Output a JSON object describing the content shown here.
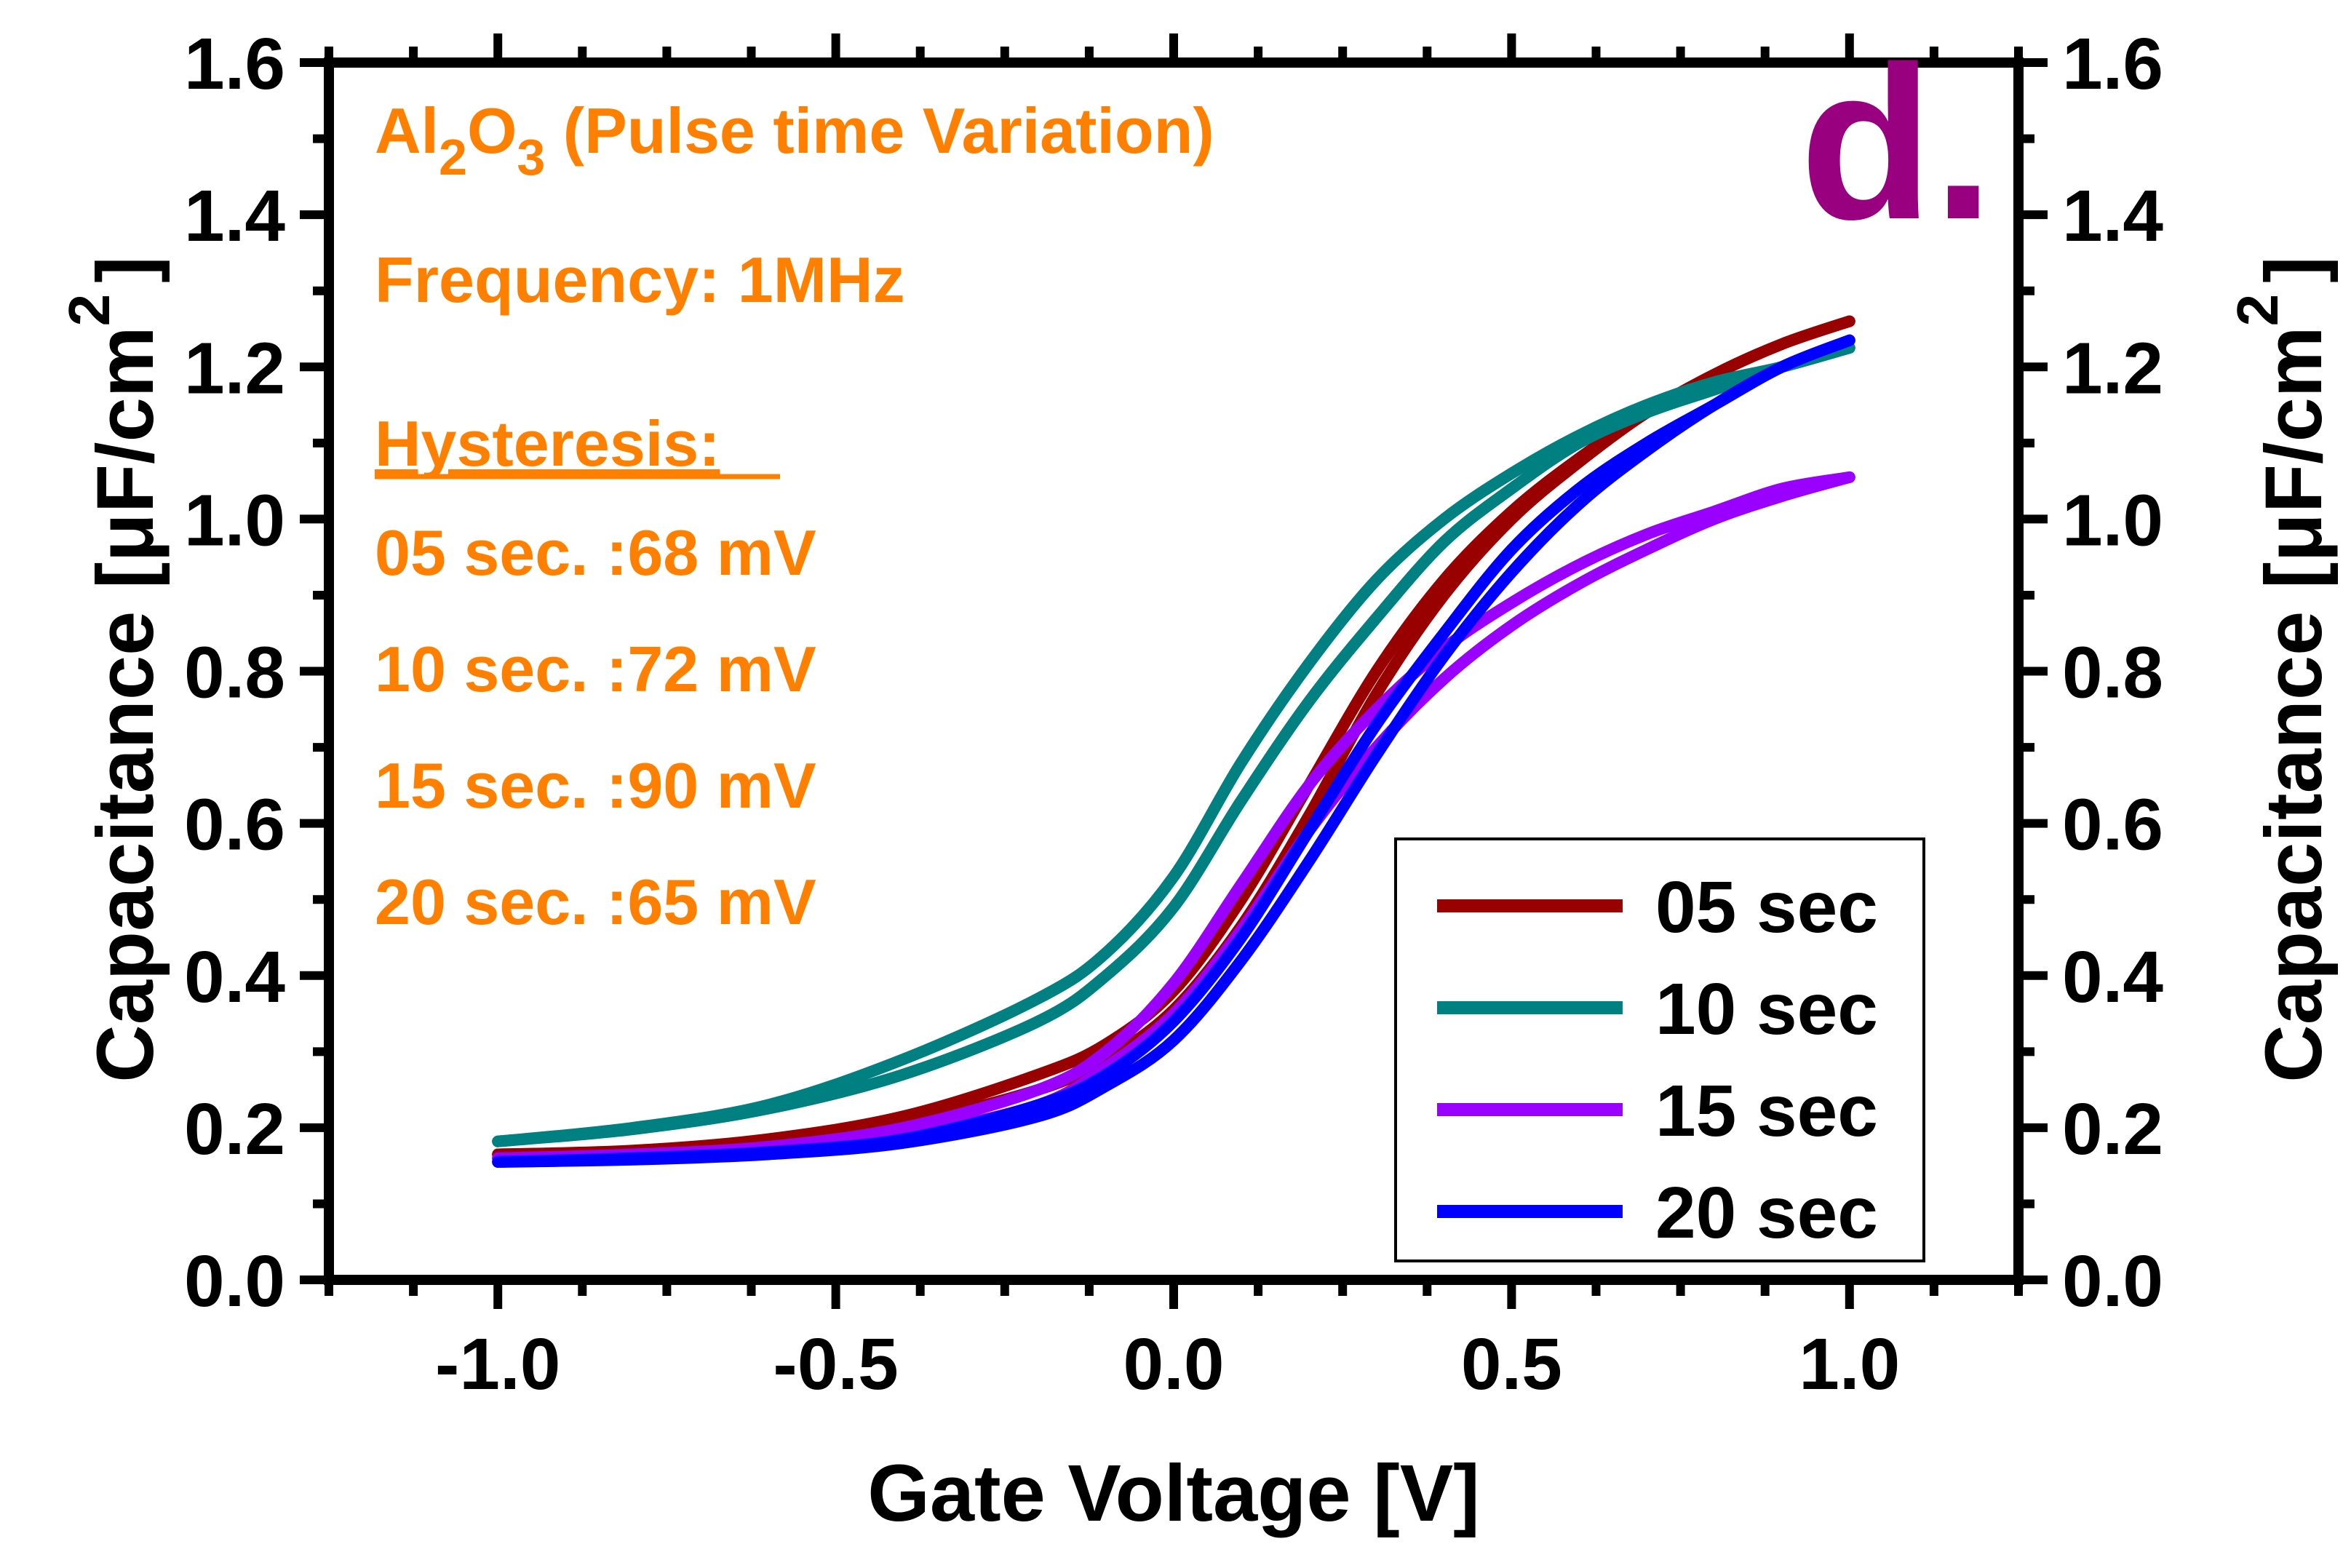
{
  "chart_data": {
    "type": "line",
    "panel_label": "d.",
    "xlabel": "Gate Voltage [V]",
    "ylabel": {
      "prefix": "Capacitance [",
      "mu": "μ",
      "unit": "F/cm",
      "sup": "2",
      "suffix": "]"
    },
    "xlim": [
      -1.25,
      1.25
    ],
    "ylim": [
      0.0,
      1.6
    ],
    "xticks": [
      -1.0,
      -0.5,
      0.0,
      0.5,
      1.0
    ],
    "xtick_labels": [
      "-1.0",
      "-0.5",
      "0.0",
      "0.5",
      "1.0"
    ],
    "yticks": [
      0.0,
      0.2,
      0.4,
      0.6,
      0.8,
      1.0,
      1.2,
      1.4,
      1.6
    ],
    "ytick_labels": [
      "0.0",
      "0.2",
      "0.4",
      "0.6",
      "0.8",
      "1.0",
      "1.2",
      "1.4",
      "1.6"
    ],
    "annotations": {
      "title_prefix": "Al",
      "title_sub1": "2",
      "title_mid": "O",
      "title_sub2": "3",
      "title_suffix": " (Pulse time Variation)",
      "frequency": "Frequency: 1MHz",
      "hysteresis_header": "Hysteresis:",
      "hysteresis_lines": [
        "05 sec. :68 mV",
        "10 sec. :72 mV",
        "15 sec. :90 mV",
        "20 sec. :65 mV"
      ]
    },
    "legend_position": "bottom-right",
    "series": [
      {
        "name": "05 sec",
        "color": "#990000",
        "forward": [
          [
            -1.0,
            0.165
          ],
          [
            -0.8,
            0.17
          ],
          [
            -0.6,
            0.185
          ],
          [
            -0.4,
            0.215
          ],
          [
            -0.2,
            0.27
          ],
          [
            -0.1,
            0.31
          ],
          [
            0.0,
            0.38
          ],
          [
            0.1,
            0.5
          ],
          [
            0.2,
            0.65
          ],
          [
            0.3,
            0.8
          ],
          [
            0.4,
            0.92
          ],
          [
            0.5,
            1.01
          ],
          [
            0.6,
            1.08
          ],
          [
            0.7,
            1.14
          ],
          [
            0.8,
            1.19
          ],
          [
            0.9,
            1.23
          ],
          [
            1.0,
            1.26
          ]
        ],
        "reverse": [
          [
            1.0,
            1.26
          ],
          [
            0.9,
            1.23
          ],
          [
            0.8,
            1.19
          ],
          [
            0.7,
            1.14
          ],
          [
            0.6,
            1.075
          ],
          [
            0.5,
            1.0
          ],
          [
            0.4,
            0.9
          ],
          [
            0.3,
            0.77
          ],
          [
            0.2,
            0.61
          ],
          [
            0.1,
            0.465
          ],
          [
            0.0,
            0.355
          ],
          [
            -0.1,
            0.29
          ],
          [
            -0.2,
            0.25
          ],
          [
            -0.4,
            0.205
          ],
          [
            -0.6,
            0.18
          ],
          [
            -0.8,
            0.168
          ],
          [
            -1.0,
            0.165
          ]
        ]
      },
      {
        "name": "10 sec",
        "color": "#008080",
        "forward": [
          [
            -1.0,
            0.182
          ],
          [
            -0.8,
            0.2
          ],
          [
            -0.6,
            0.23
          ],
          [
            -0.4,
            0.29
          ],
          [
            -0.2,
            0.37
          ],
          [
            -0.1,
            0.43
          ],
          [
            0.0,
            0.53
          ],
          [
            0.1,
            0.68
          ],
          [
            0.2,
            0.81
          ],
          [
            0.3,
            0.92
          ],
          [
            0.4,
            1.0
          ],
          [
            0.5,
            1.06
          ],
          [
            0.6,
            1.11
          ],
          [
            0.7,
            1.15
          ],
          [
            0.8,
            1.18
          ],
          [
            0.9,
            1.2
          ],
          [
            1.0,
            1.225
          ]
        ],
        "reverse": [
          [
            1.0,
            1.225
          ],
          [
            0.9,
            1.2
          ],
          [
            0.8,
            1.17
          ],
          [
            0.7,
            1.14
          ],
          [
            0.6,
            1.1
          ],
          [
            0.5,
            1.04
          ],
          [
            0.4,
            0.97
          ],
          [
            0.3,
            0.87
          ],
          [
            0.2,
            0.76
          ],
          [
            0.1,
            0.63
          ],
          [
            0.0,
            0.49
          ],
          [
            -0.1,
            0.4
          ],
          [
            -0.2,
            0.34
          ],
          [
            -0.4,
            0.27
          ],
          [
            -0.6,
            0.225
          ],
          [
            -0.8,
            0.198
          ],
          [
            -1.0,
            0.182
          ]
        ]
      },
      {
        "name": "15 sec",
        "color": "#9900ff",
        "forward": [
          [
            -1.0,
            0.16
          ],
          [
            -0.8,
            0.165
          ],
          [
            -0.6,
            0.175
          ],
          [
            -0.4,
            0.2
          ],
          [
            -0.2,
            0.25
          ],
          [
            -0.1,
            0.3
          ],
          [
            0.0,
            0.39
          ],
          [
            0.1,
            0.52
          ],
          [
            0.2,
            0.65
          ],
          [
            0.3,
            0.75
          ],
          [
            0.4,
            0.83
          ],
          [
            0.5,
            0.89
          ],
          [
            0.6,
            0.94
          ],
          [
            0.7,
            0.98
          ],
          [
            0.8,
            1.01
          ],
          [
            0.9,
            1.04
          ],
          [
            1.0,
            1.055
          ]
        ],
        "reverse": [
          [
            1.0,
            1.055
          ],
          [
            0.9,
            1.03
          ],
          [
            0.8,
            1.0
          ],
          [
            0.7,
            0.96
          ],
          [
            0.6,
            0.915
          ],
          [
            0.5,
            0.86
          ],
          [
            0.4,
            0.79
          ],
          [
            0.3,
            0.7
          ],
          [
            0.2,
            0.59
          ],
          [
            0.1,
            0.46
          ],
          [
            0.0,
            0.35
          ],
          [
            -0.1,
            0.28
          ],
          [
            -0.2,
            0.23
          ],
          [
            -0.4,
            0.19
          ],
          [
            -0.6,
            0.17
          ],
          [
            -0.8,
            0.162
          ],
          [
            -1.0,
            0.16
          ]
        ]
      },
      {
        "name": "20 sec",
        "color": "#0000ff",
        "forward": [
          [
            -1.0,
            0.155
          ],
          [
            -0.8,
            0.16
          ],
          [
            -0.6,
            0.168
          ],
          [
            -0.4,
            0.185
          ],
          [
            -0.2,
            0.23
          ],
          [
            -0.1,
            0.27
          ],
          [
            0.0,
            0.34
          ],
          [
            0.1,
            0.45
          ],
          [
            0.2,
            0.59
          ],
          [
            0.3,
            0.73
          ],
          [
            0.4,
            0.85
          ],
          [
            0.5,
            0.96
          ],
          [
            0.6,
            1.04
          ],
          [
            0.7,
            1.1
          ],
          [
            0.8,
            1.15
          ],
          [
            0.9,
            1.2
          ],
          [
            1.0,
            1.235
          ]
        ],
        "reverse": [
          [
            1.0,
            1.235
          ],
          [
            0.9,
            1.2
          ],
          [
            0.8,
            1.15
          ],
          [
            0.7,
            1.09
          ],
          [
            0.6,
            1.02
          ],
          [
            0.5,
            0.93
          ],
          [
            0.4,
            0.82
          ],
          [
            0.3,
            0.69
          ],
          [
            0.2,
            0.55
          ],
          [
            0.1,
            0.42
          ],
          [
            0.0,
            0.315
          ],
          [
            -0.1,
            0.255
          ],
          [
            -0.2,
            0.215
          ],
          [
            -0.4,
            0.18
          ],
          [
            -0.6,
            0.165
          ],
          [
            -0.8,
            0.158
          ],
          [
            -1.0,
            0.155
          ]
        ]
      }
    ]
  }
}
